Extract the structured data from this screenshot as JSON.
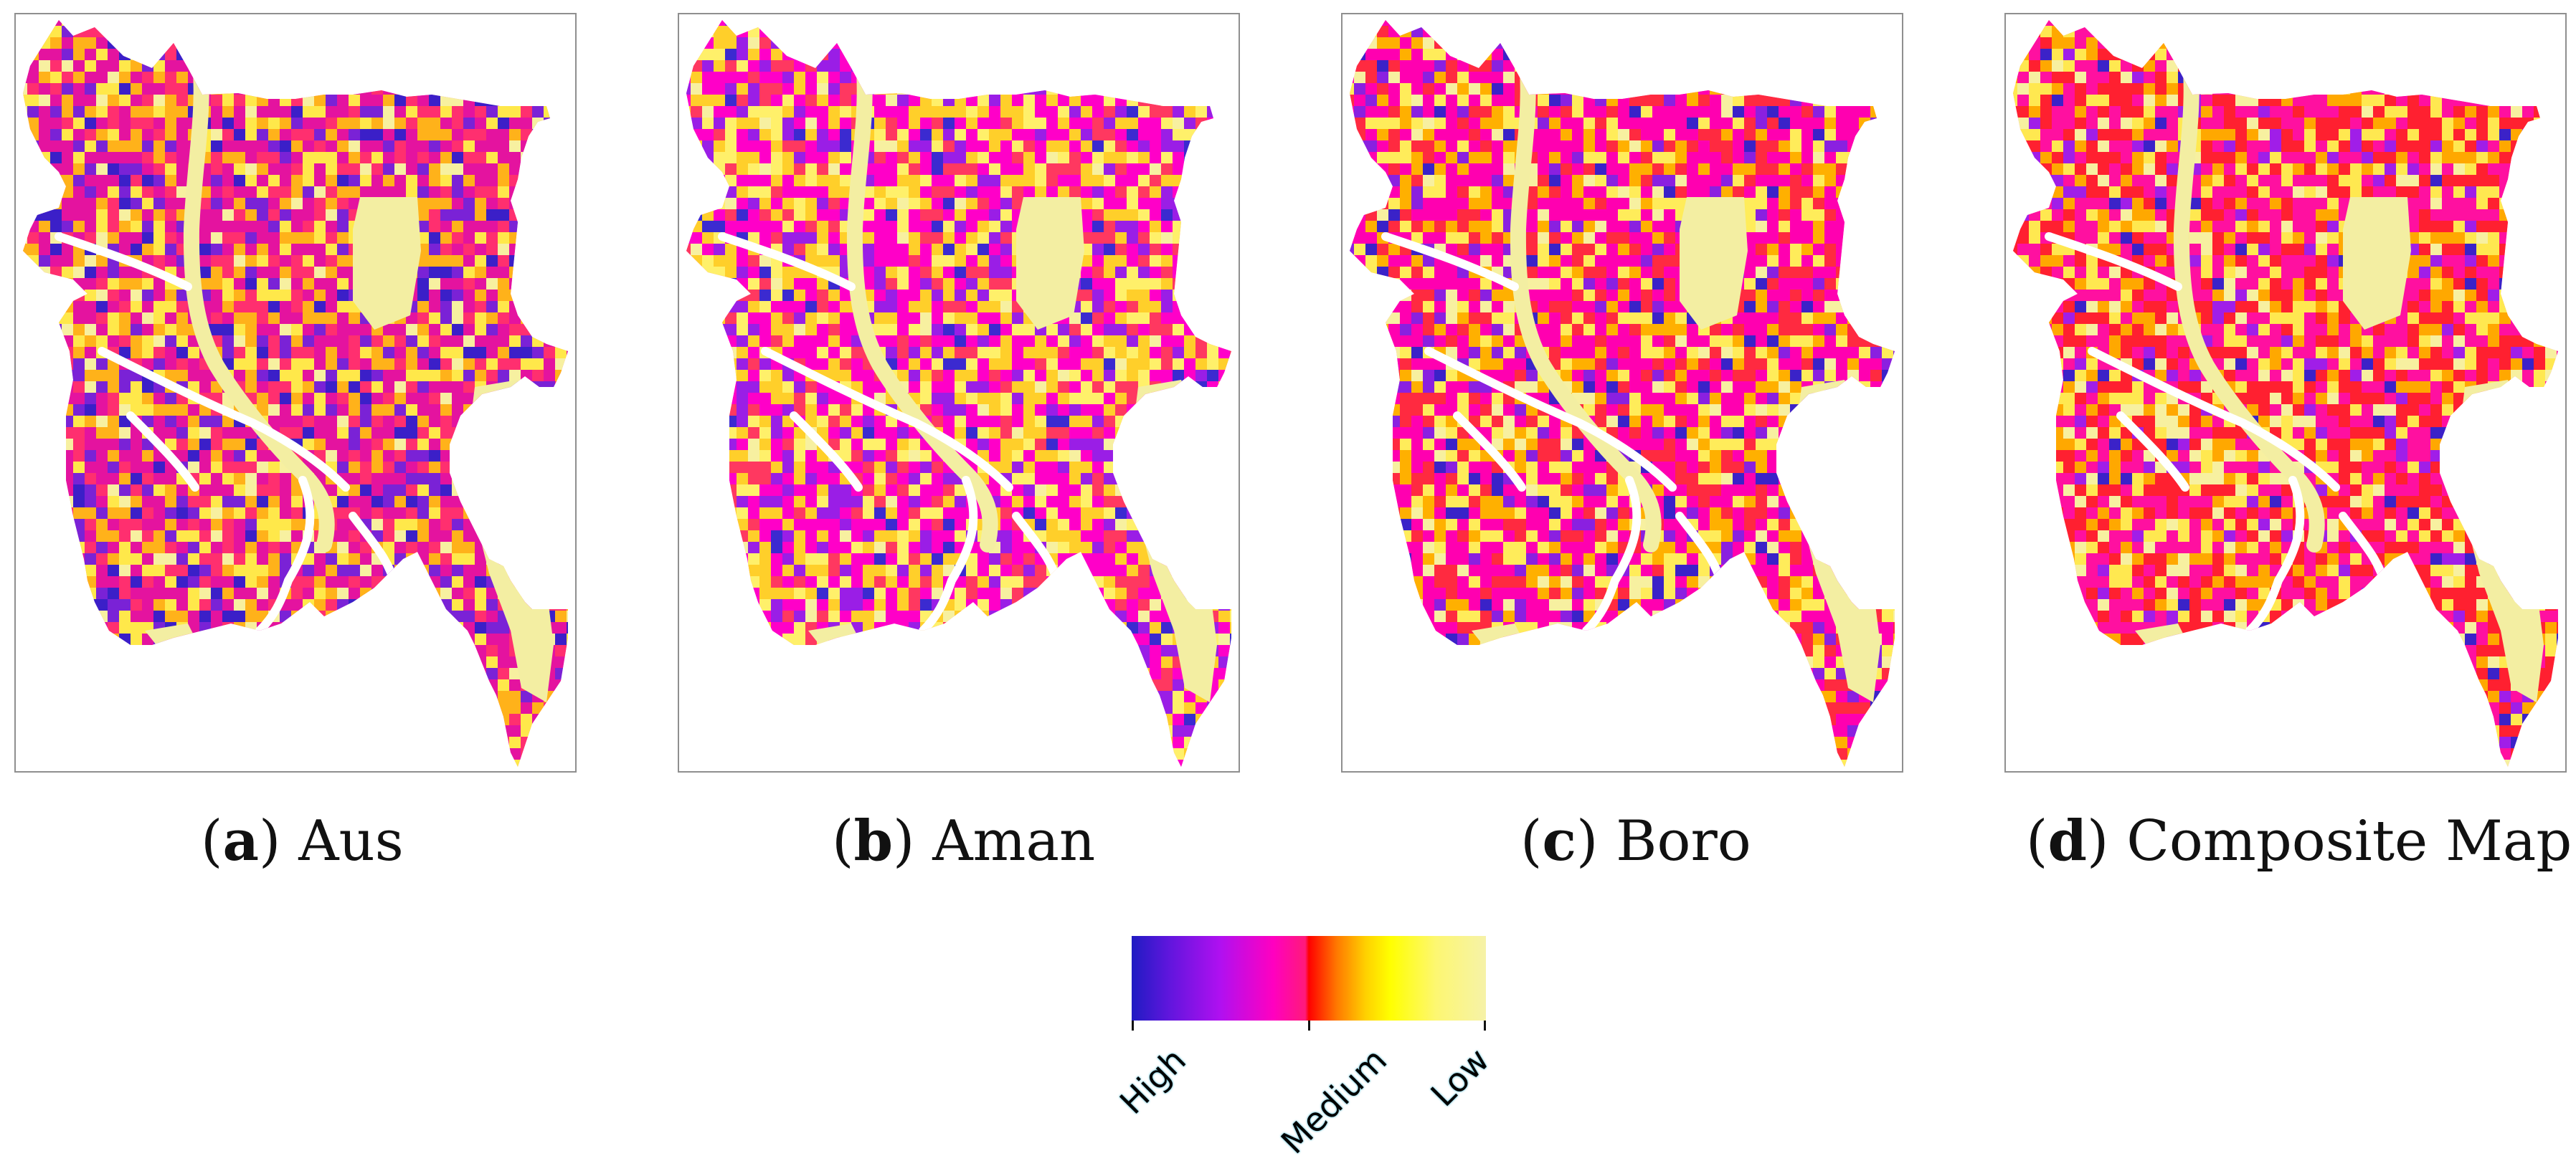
{
  "panels": [
    {
      "letter": "a",
      "name": "Aus",
      "palette": [
        [
          "#e4139f",
          0.3
        ],
        [
          "#ff2f6f",
          0.18
        ],
        [
          "#ffb21a",
          0.16
        ],
        [
          "#ffe84a",
          0.14
        ],
        [
          "#7a22d6",
          0.1
        ],
        [
          "#3b1fc8",
          0.06
        ],
        [
          "#f7f0a0",
          0.06
        ]
      ]
    },
    {
      "letter": "b",
      "name": "Aman",
      "palette": [
        [
          "#ff00c8",
          0.32
        ],
        [
          "#ff3860",
          0.12
        ],
        [
          "#ffcf2a",
          0.2
        ],
        [
          "#fff06a",
          0.16
        ],
        [
          "#9a1ee6",
          0.12
        ],
        [
          "#3b2ad0",
          0.04
        ],
        [
          "#f7f0a0",
          0.04
        ]
      ]
    },
    {
      "letter": "c",
      "name": "Boro",
      "palette": [
        [
          "#ff00b0",
          0.34
        ],
        [
          "#ff2a40",
          0.2
        ],
        [
          "#ffb000",
          0.14
        ],
        [
          "#ffec5a",
          0.14
        ],
        [
          "#8a20e0",
          0.08
        ],
        [
          "#3a22c8",
          0.04
        ],
        [
          "#f7f0a0",
          0.06
        ]
      ]
    },
    {
      "letter": "d",
      "name": "Composite Map",
      "palette": [
        [
          "#ff10a0",
          0.3
        ],
        [
          "#ff2030",
          0.26
        ],
        [
          "#ffa800",
          0.14
        ],
        [
          "#ffe850",
          0.14
        ],
        [
          "#a01ee8",
          0.06
        ],
        [
          "#3b22c8",
          0.02
        ],
        [
          "#f7f0a0",
          0.08
        ]
      ]
    }
  ],
  "legend": {
    "gradient": [
      "#1f1bc2",
      "#b010f0",
      "#ff00c0",
      "#ff0000",
      "#ffff00",
      "#f6f2a8"
    ],
    "labels": {
      "high": "High",
      "medium": "Medium",
      "low": "Low"
    }
  },
  "colors": {
    "low_suitability_fill": "#f3eea2",
    "water_bodies": "#ffffff",
    "panel_border": "#8f8f8f"
  }
}
